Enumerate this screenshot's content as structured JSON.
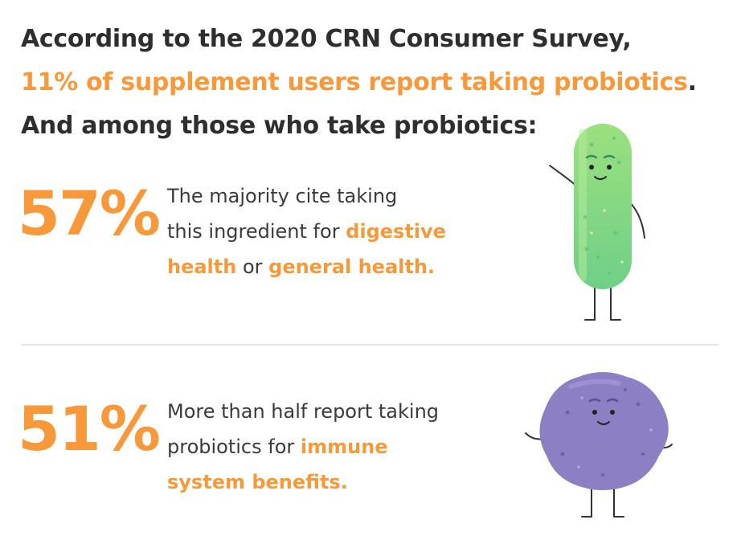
{
  "headline": {
    "line1": "According to the 2020 CRN Consumer Survey,",
    "line2_highlight": "11% of supplement users report taking probiotics",
    "line2_end": ".",
    "line3": "And among those who take probiotics",
    "line3_end": ":"
  },
  "stats": [
    {
      "value": "57%",
      "text1": "The majority cite taking",
      "text2": "this ingredient for ",
      "hl1": "digestive",
      "hl2": "health",
      "mid": " or ",
      "hl3": "general health."
    },
    {
      "value": "51%",
      "text1": "More than half report taking",
      "text2": "probiotics for ",
      "hl1": "immune",
      "hl2": "system benefits."
    }
  ],
  "colors": {
    "accent": "#f7993a",
    "text": "#2e2e2e",
    "green_character": "#8fd67a",
    "purple_character": "#8c7fc4"
  },
  "illustrations": [
    "green-rod-bacterium-character",
    "purple-blob-microbe-character"
  ]
}
